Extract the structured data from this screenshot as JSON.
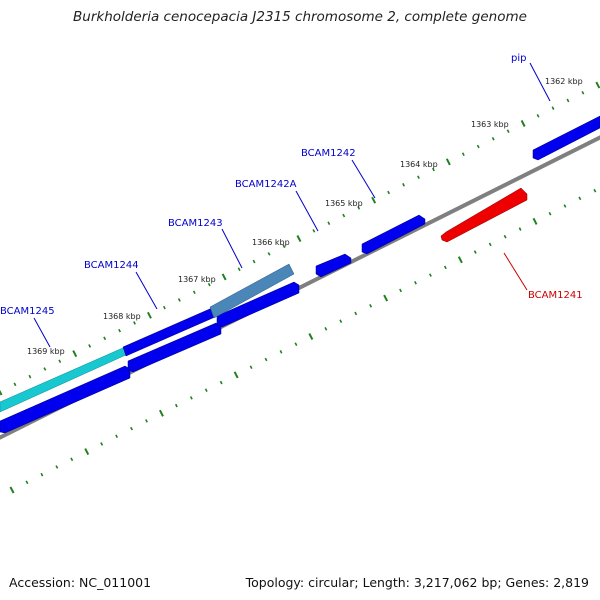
{
  "title": "Burkholderia cenocepacia J2315 chromosome 2, complete genome",
  "footer": {
    "accession": "Accession: NC_011001",
    "summary": "Topology: circular; Length: 3,217,062 bp; Genes: 2,819"
  },
  "colors": {
    "forward_gene": "#0000ee",
    "reverse_gene": "#ee0000",
    "cyan_feature": "#18c8d0",
    "steel_feature": "#4a86b8",
    "backbone": "#808080",
    "tick": "#208020",
    "label_forward": "#0000cc",
    "label_reverse": "#cc0000"
  },
  "ruler": {
    "unit": "kbp",
    "labels": [
      "1362 kbp",
      "1363 kbp",
      "1364 kbp",
      "1365 kbp",
      "1366 kbp",
      "1367 kbp",
      "1368 kbp",
      "1369 kbp"
    ]
  },
  "genes": [
    {
      "name": "pip",
      "strand": "forward"
    },
    {
      "name": "BCAM1242",
      "strand": "forward"
    },
    {
      "name": "BCAM1242A",
      "strand": "forward"
    },
    {
      "name": "BCAM1243",
      "strand": "forward"
    },
    {
      "name": "BCAM1244",
      "strand": "forward"
    },
    {
      "name": "BCAM1245",
      "strand": "forward"
    },
    {
      "name": "BCAM1241",
      "strand": "reverse"
    }
  ]
}
